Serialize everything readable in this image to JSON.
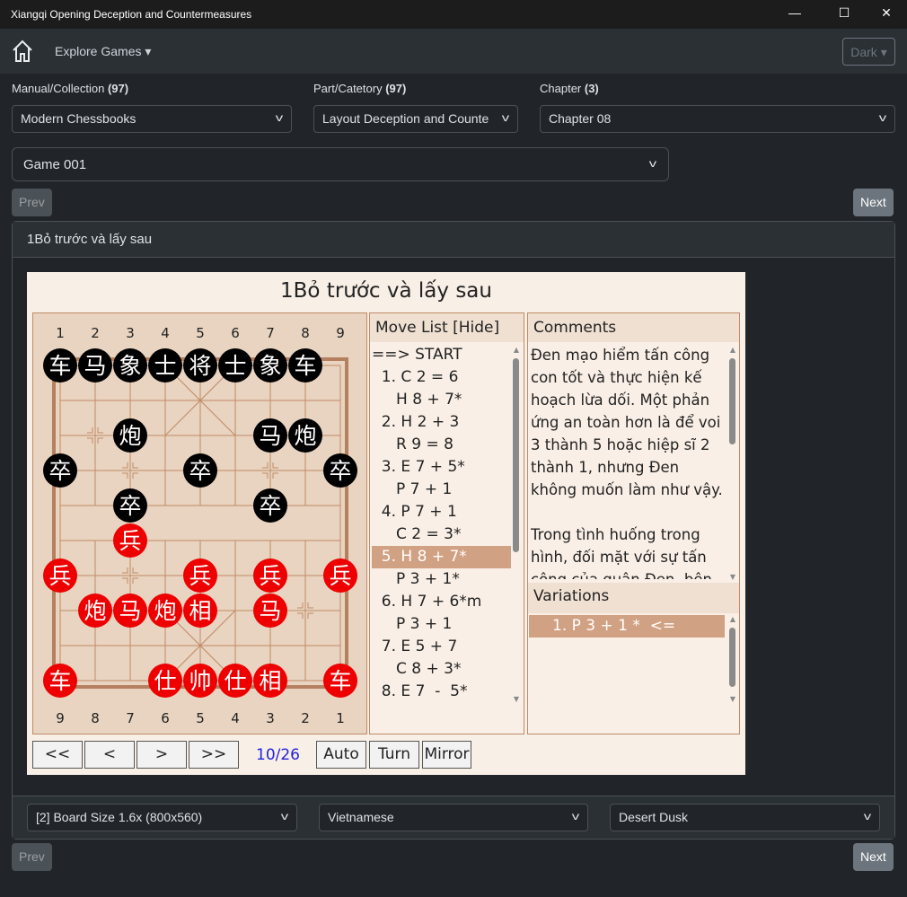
{
  "window": {
    "title": "Xiangqi Opening Deception and Countermeasures",
    "minimize": "—",
    "maximize": "☐",
    "close": "✕"
  },
  "navbar": {
    "home_icon": "home-icon",
    "explore": "Explore Games ▾",
    "theme": "Dark ▾"
  },
  "filters": {
    "manual_label": "Manual/Collection",
    "manual_count": "(97)",
    "manual_value": "Modern Chessbooks",
    "part_label": "Part/Catetory",
    "part_count": "(97)",
    "part_value": "Layout Deception and Counte",
    "chapter_label": "Chapter",
    "chapter_count": "(3)",
    "chapter_value": "Chapter 08",
    "game_value": "Game 001"
  },
  "nav": {
    "prev": "Prev",
    "next": "Next"
  },
  "card": {
    "header": "1Bỏ trước và lấy sau"
  },
  "board": {
    "title": "1Bỏ trước và lấy sau",
    "top_files": [
      "1",
      "2",
      "3",
      "4",
      "5",
      "6",
      "7",
      "8",
      "9"
    ],
    "bottom_files": [
      "9",
      "8",
      "7",
      "6",
      "5",
      "4",
      "3",
      "2",
      "1"
    ],
    "colors": {
      "black": "#000000",
      "red": "#ee0000",
      "line": "#c08a66",
      "board": "#e8d4c0"
    },
    "pieces": [
      {
        "c": "车",
        "s": "black",
        "col": 0,
        "row": 0
      },
      {
        "c": "马",
        "s": "black",
        "col": 1,
        "row": 0
      },
      {
        "c": "象",
        "s": "black",
        "col": 2,
        "row": 0
      },
      {
        "c": "士",
        "s": "black",
        "col": 3,
        "row": 0
      },
      {
        "c": "将",
        "s": "black",
        "col": 4,
        "row": 0
      },
      {
        "c": "士",
        "s": "black",
        "col": 5,
        "row": 0
      },
      {
        "c": "象",
        "s": "black",
        "col": 6,
        "row": 0
      },
      {
        "c": "车",
        "s": "black",
        "col": 7,
        "row": 0
      },
      {
        "c": "炮",
        "s": "black",
        "col": 2,
        "row": 2
      },
      {
        "c": "马",
        "s": "black",
        "col": 6,
        "row": 2
      },
      {
        "c": "炮",
        "s": "black",
        "col": 7,
        "row": 2
      },
      {
        "c": "卒",
        "s": "black",
        "col": 0,
        "row": 3
      },
      {
        "c": "卒",
        "s": "black",
        "col": 4,
        "row": 3
      },
      {
        "c": "卒",
        "s": "black",
        "col": 8,
        "row": 3
      },
      {
        "c": "卒",
        "s": "black",
        "col": 2,
        "row": 4
      },
      {
        "c": "卒",
        "s": "black",
        "col": 6,
        "row": 4
      },
      {
        "c": "兵",
        "s": "red",
        "col": 2,
        "row": 5
      },
      {
        "c": "兵",
        "s": "red",
        "col": 0,
        "row": 6
      },
      {
        "c": "兵",
        "s": "red",
        "col": 4,
        "row": 6
      },
      {
        "c": "兵",
        "s": "red",
        "col": 6,
        "row": 6
      },
      {
        "c": "兵",
        "s": "red",
        "col": 8,
        "row": 6
      },
      {
        "c": "炮",
        "s": "red",
        "col": 1,
        "row": 7
      },
      {
        "c": "马",
        "s": "red",
        "col": 2,
        "row": 7
      },
      {
        "c": "炮",
        "s": "red",
        "col": 3,
        "row": 7
      },
      {
        "c": "相",
        "s": "red",
        "col": 4,
        "row": 7
      },
      {
        "c": "马",
        "s": "red",
        "col": 6,
        "row": 7
      },
      {
        "c": "车",
        "s": "red",
        "col": 0,
        "row": 9
      },
      {
        "c": "仕",
        "s": "red",
        "col": 3,
        "row": 9
      },
      {
        "c": "帅",
        "s": "red",
        "col": 4,
        "row": 9
      },
      {
        "c": "仕",
        "s": "red",
        "col": 5,
        "row": 9
      },
      {
        "c": "相",
        "s": "red",
        "col": 6,
        "row": 9
      },
      {
        "c": "车",
        "s": "red",
        "col": 8,
        "row": 9
      }
    ],
    "markers": [
      {
        "col": 1,
        "row": 2
      },
      {
        "col": 2,
        "row": 3
      },
      {
        "col": 6,
        "row": 3
      },
      {
        "col": 2,
        "row": 6
      },
      {
        "col": 7,
        "row": 7
      }
    ]
  },
  "movelist": {
    "header": "Move List [Hide]",
    "selected": 9,
    "moves": [
      "==> START",
      "  1. C 2 = 6",
      "     H 8 + 7*",
      "  2. H 2 + 3",
      "     R 9 = 8",
      "  3. E 7 + 5*",
      "     P 7 + 1",
      "  4. P 7 + 1",
      "     C 2 = 3*",
      "  5. H 8 + 7*",
      "     P 3 + 1*",
      "  6. H 7 + 6*m",
      "     P 3 + 1",
      "  7. E 5 + 7",
      "     C 8 + 3*",
      "  8. E 7  -  5*"
    ]
  },
  "comments": {
    "header": "Comments",
    "text": "Đen mạo hiểm tấn công con tốt và thực hiện kế hoạch lừa dối. Một phản ứng an toàn hơn là để voi 3 thành 5 hoặc hiệp sĩ 2 thành 1, nhưng Đen không muốn làm như vậy.\n\nTrong tình huống trong hình, đối mặt với sự tấn công của quân Đen, bên đỏ"
  },
  "variations": {
    "header": "Variations",
    "items": [
      "1. P 3 + 1 *  <="
    ]
  },
  "controls": {
    "first": "<<",
    "prev": "<",
    "next": ">",
    "last": ">>",
    "position": "10/26",
    "auto": "Auto",
    "turn": "Turn",
    "mirror": "Mirror"
  },
  "footer": {
    "board_size": "[2] Board Size 1.6x (800x560)",
    "language": "Vietnamese",
    "theme": "Desert Dusk"
  }
}
